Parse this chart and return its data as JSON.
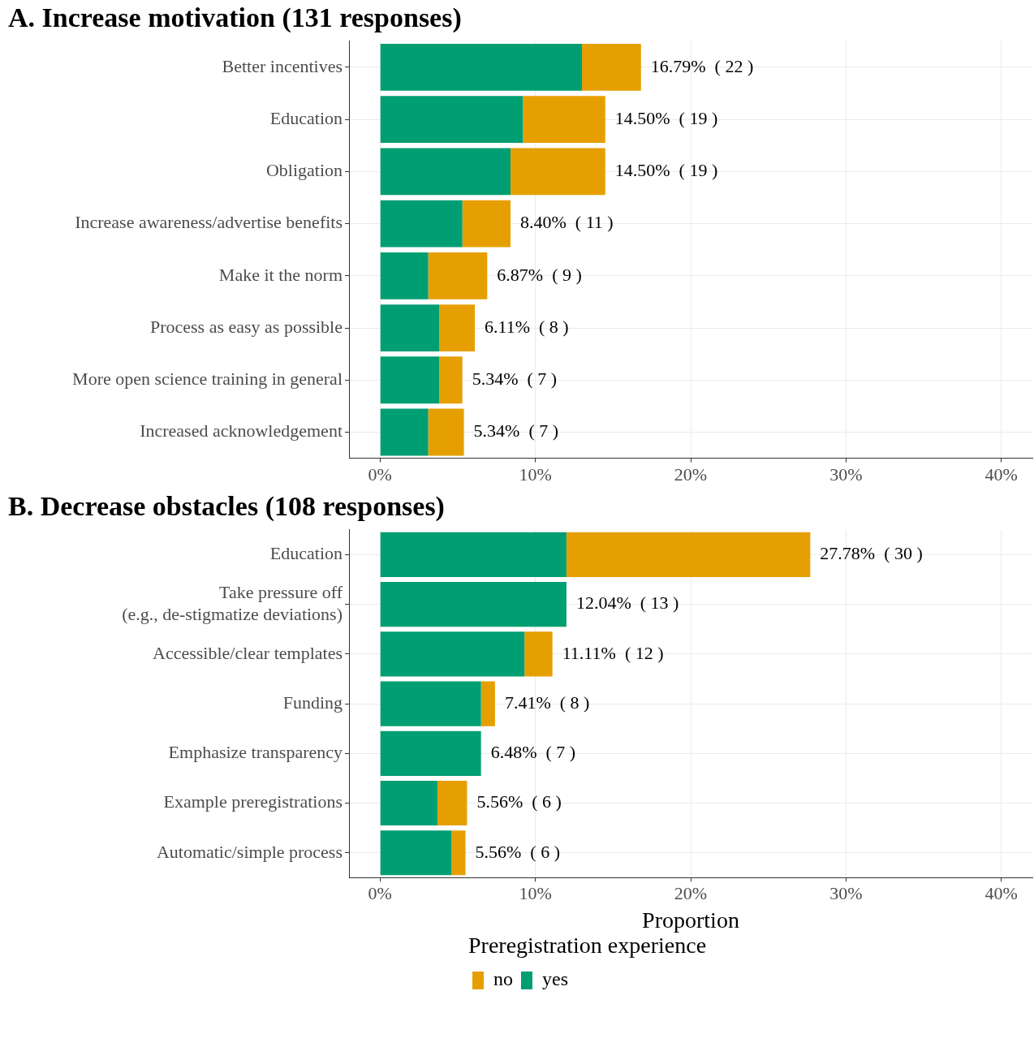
{
  "chart_data": [
    {
      "type": "bar",
      "orientation": "horizontal",
      "stacked": true,
      "title": "A. Increase motivation (131 responses)",
      "categories": [
        "Better incentives",
        "Education",
        "Obligation",
        "Increase awareness/advertise benefits",
        "Make it the norm",
        "Process as easy as possible",
        "More open science training in general",
        "Increased acknowledgement"
      ],
      "series": [
        {
          "color": "#009e73",
          "values": [
            13.0,
            9.2,
            8.4,
            5.3,
            3.1,
            3.8,
            3.8,
            3.1
          ]
        },
        {
          "color": "#e69f00",
          "values": [
            3.8,
            5.3,
            6.1,
            3.1,
            3.8,
            2.3,
            1.5,
            2.3
          ]
        }
      ],
      "totals": [
        "16.79%  ( 22 )",
        "14.50%  ( 19 )",
        "14.50%  ( 19 )",
        "8.40%  ( 11 )",
        "6.87%  ( 9 )",
        "6.11%  ( 8 )",
        "5.34%  ( 7 )",
        "5.34%  ( 7 )"
      ],
      "xlim": [
        -2,
        42
      ],
      "xticks": [
        {
          "value": 0,
          "label": "0%"
        },
        {
          "value": 10,
          "label": "10%"
        },
        {
          "value": 20,
          "label": "20%"
        },
        {
          "value": 30,
          "label": "30%"
        },
        {
          "value": 40,
          "label": "40%"
        }
      ],
      "grid": true,
      "legend": false
    },
    {
      "type": "bar",
      "orientation": "horizontal",
      "stacked": true,
      "title": "B. Decrease obstacles (108 responses)",
      "xlabel": "Proportion",
      "legend_title": "Preregistration experience",
      "categories": [
        "Education",
        "Take pressure off\n(e.g., de-stigmatize deviations)",
        "Accessible/clear templates",
        "Funding",
        "Emphasize transparency",
        "Example preregistrations",
        "Automatic/simple process"
      ],
      "series": [
        {
          "name": "yes",
          "color": "#009e73",
          "values": [
            12.0,
            12.0,
            9.3,
            6.5,
            6.5,
            3.7,
            4.6
          ]
        },
        {
          "name": "no",
          "color": "#e69f00",
          "values": [
            15.7,
            0,
            1.8,
            0.9,
            0,
            1.9,
            0.9
          ]
        }
      ],
      "totals": [
        "27.78%  ( 30 )",
        "12.04%  ( 13 )",
        "11.11%  ( 12 )",
        "7.41%  ( 8 )",
        "6.48%  ( 7 )",
        "5.56%  ( 6 )",
        "5.56%  ( 6 )"
      ],
      "xlim": [
        -2,
        42
      ],
      "xticks": [
        {
          "value": 0,
          "label": "0%"
        },
        {
          "value": 10,
          "label": "10%"
        },
        {
          "value": 20,
          "label": "20%"
        },
        {
          "value": 30,
          "label": "30%"
        },
        {
          "value": 40,
          "label": "40%"
        }
      ],
      "grid": true,
      "legend": "bottom"
    }
  ]
}
